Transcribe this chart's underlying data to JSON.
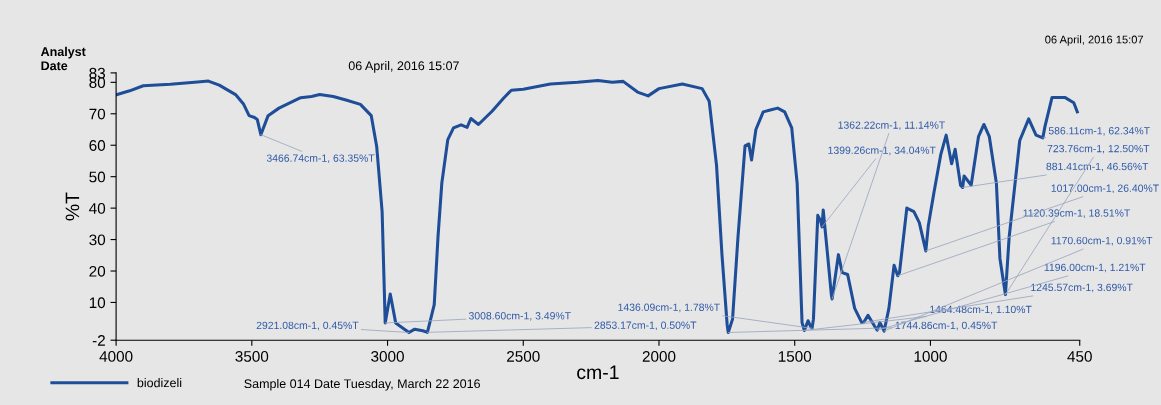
{
  "chart_data": {
    "type": "line",
    "xlabel": "cm-1",
    "ylabel": "%T",
    "xlim": [
      4000,
      450
    ],
    "ylim": [
      -2,
      83
    ],
    "xticks": [
      4000,
      3500,
      3000,
      2500,
      2000,
      1500,
      1000,
      450
    ],
    "yticks": [
      -2,
      10,
      20,
      30,
      40,
      50,
      60,
      70,
      80,
      83
    ],
    "grid": false,
    "legend": "bottom",
    "marker": "none",
    "line_style": "solid",
    "series": [
      {
        "name": "biodizeli",
        "color": "#1f4e99",
        "x": [
          4000,
          3950,
          3900,
          3800,
          3700,
          3660,
          3620,
          3560,
          3530,
          3510,
          3490,
          3480,
          3466.74,
          3440,
          3400,
          3320,
          3280,
          3250,
          3200,
          3150,
          3100,
          3060,
          3040,
          3020,
          3008.6,
          2990,
          2970,
          2921.08,
          2900,
          2870,
          2853.17,
          2828,
          2814,
          2800,
          2778,
          2757,
          2729,
          2707,
          2693,
          2665,
          2615,
          2572,
          2544,
          2500,
          2400,
          2300,
          2225,
          2172,
          2132,
          2079,
          2040,
          2000,
          1914,
          1841,
          1815,
          1788,
          1768,
          1749,
          1744.86,
          1729,
          1709,
          1683,
          1669,
          1659,
          1643,
          1616,
          1590,
          1563,
          1537,
          1511,
          1491,
          1473,
          1464.48,
          1451,
          1442,
          1436.09,
          1431,
          1415,
          1405,
          1399.26,
          1395,
          1378,
          1365,
          1362.22,
          1339,
          1325,
          1305,
          1279,
          1253,
          1245.57,
          1230,
          1206,
          1196,
          1186,
          1170.6,
          1153,
          1134,
          1120.39,
          1114,
          1087,
          1061,
          1041,
          1017,
          1008,
          988,
          962,
          942,
          922,
          909,
          889,
          881.41,
          876,
          850,
          823,
          803,
          783,
          757,
          744,
          723.76,
          710,
          671,
          638,
          611,
          586.11,
          578,
          552,
          505,
          472,
          459
        ],
        "values": [
          76,
          77.3,
          78.9,
          79.4,
          80.1,
          80.4,
          79.1,
          76.1,
          73,
          69.4,
          68.8,
          68.2,
          63.35,
          69.4,
          71.8,
          75.1,
          75.5,
          76.1,
          75.5,
          74.3,
          73,
          69.4,
          59.6,
          38.9,
          3.49,
          12.7,
          3.5,
          0.45,
          1.5,
          1,
          0.5,
          9.3,
          31,
          48,
          61.8,
          65.5,
          66.5,
          65.7,
          68.5,
          66.6,
          70.8,
          75,
          77.5,
          77.8,
          79.5,
          80,
          80.6,
          80,
          80.3,
          76.9,
          75.7,
          78,
          79.5,
          78,
          74,
          53.6,
          25.2,
          3,
          0.45,
          4.7,
          30.8,
          59.8,
          60.4,
          55.3,
          65,
          70.6,
          71.2,
          71.8,
          70.6,
          65.5,
          47.9,
          3.6,
          1.1,
          4.2,
          2.5,
          1.78,
          4.7,
          37.7,
          36,
          34.04,
          39.4,
          24.3,
          12.4,
          11.14,
          25.2,
          19.5,
          18.9,
          8.1,
          3.6,
          3.69,
          5.9,
          2.5,
          1.21,
          3.6,
          0.91,
          8.1,
          21.8,
          18.51,
          19.5,
          40,
          38.9,
          35.4,
          26.4,
          34.3,
          44.5,
          57,
          63.2,
          54.1,
          58.7,
          47.3,
          46.56,
          50.2,
          47.3,
          62.7,
          66.6,
          62.7,
          47.9,
          24,
          12.5,
          30.8,
          61.5,
          68.4,
          63.2,
          62.34,
          66,
          75.2,
          75.2,
          73.5,
          70.6
        ]
      }
    ],
    "annotations": [
      "Analyst",
      "Date",
      "06 April, 2016 15:07",
      "06 April, 2016 15:07",
      "Sample 014 Date Tuesday, March 22 2016",
      {
        "text": "3466.74cm-1, 63.35%T",
        "x": 3466.74,
        "y": 63.35
      },
      {
        "text": "3008.60cm-1, 3.49%T",
        "x": 3008.6,
        "y": 3.49
      },
      {
        "text": "2921.08cm-1, 0.45%T",
        "x": 2921.08,
        "y": 0.45
      },
      {
        "text": "2853.17cm-1, 0.50%T",
        "x": 2853.17,
        "y": 0.5
      },
      {
        "text": "1744.86cm-1, 0.45%T",
        "x": 1744.86,
        "y": 0.45
      },
      {
        "text": "1464.48cm-1, 1.10%T",
        "x": 1464.48,
        "y": 1.1
      },
      {
        "text": "1436.09cm-1, 1.78%T",
        "x": 1436.09,
        "y": 1.78
      },
      {
        "text": "1399.26cm-1, 34.04%T",
        "x": 1399.26,
        "y": 34.04
      },
      {
        "text": "1362.22cm-1, 11.14%T",
        "x": 1362.22,
        "y": 11.14
      },
      {
        "text": "1245.57cm-1, 3.69%T",
        "x": 1245.57,
        "y": 3.69
      },
      {
        "text": "1196.00cm-1, 1.21%T",
        "x": 1196,
        "y": 1.21
      },
      {
        "text": "1170.60cm-1, 0.91%T",
        "x": 1170.6,
        "y": 0.91
      },
      {
        "text": "1120.39cm-1, 18.51%T",
        "x": 1120.39,
        "y": 18.51
      },
      {
        "text": "1017.00cm-1, 26.40%T",
        "x": 1017,
        "y": 26.4
      },
      {
        "text": "881.41cm-1, 46.56%T",
        "x": 881.41,
        "y": 46.56
      },
      {
        "text": "723.76cm-1, 12.50%T",
        "x": 723.76,
        "y": 12.5
      },
      {
        "text": "586.11cm-1, 62.34%T",
        "x": 586.11,
        "y": 62.34
      }
    ]
  }
}
